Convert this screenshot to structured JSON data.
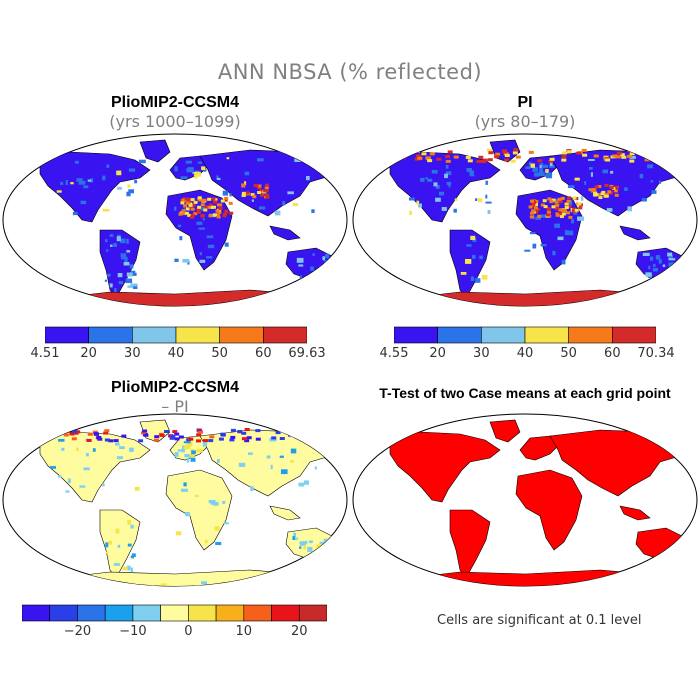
{
  "title": "ANN NBSA (% reflected)",
  "panels": [
    {
      "id": "p1",
      "title": "PlioMIP2-CCSM4",
      "subtitle": "(yrs 1000–1099)"
    },
    {
      "id": "p2",
      "title": "PI",
      "subtitle": "(yrs 80–179)"
    },
    {
      "id": "p3",
      "title": "PlioMIP2-CCSM4",
      "subtitle": "– PI"
    },
    {
      "id": "p4",
      "title": "T-Test of two Case means at each grid point",
      "subtitle": ""
    }
  ],
  "colorbar1": {
    "colors": [
      "#3a14f0",
      "#2a73e8",
      "#7fc6ea",
      "#f7e44a",
      "#f77a1a",
      "#d42a2a"
    ],
    "labels": [
      "4.51",
      "20",
      "30",
      "40",
      "50",
      "60",
      "69.63"
    ]
  },
  "colorbar2": {
    "colors": [
      "#3a14f0",
      "#2a73e8",
      "#7fc6ea",
      "#f7e44a",
      "#f77a1a",
      "#d42a2a"
    ],
    "labels": [
      "4.55",
      "20",
      "30",
      "40",
      "50",
      "60",
      "70.34"
    ]
  },
  "colorbar3": {
    "colors": [
      "#3a14f0",
      "#2a3fe8",
      "#2a73e8",
      "#1aa0ee",
      "#7fd0f0",
      "#fffca0",
      "#f7e44a",
      "#f7b01a",
      "#f7601a",
      "#e8141a",
      "#c82a2a"
    ],
    "labels": [
      "−20",
      "−10",
      "0",
      "10",
      "20"
    ]
  },
  "significance_note": "Cells are significant at 0.1 level",
  "colors": {
    "land_p4": "#ff0000",
    "ocean": "#ffffff",
    "outline": "#000000"
  }
}
